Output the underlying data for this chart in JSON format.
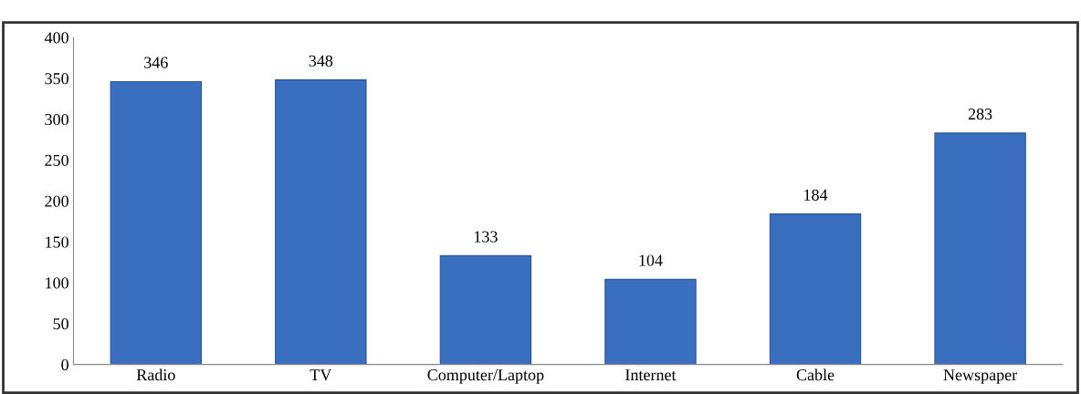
{
  "chart_data": {
    "type": "bar",
    "categories": [
      "Radio",
      "TV",
      "Computer/Laptop",
      "Internet",
      "Cable",
      "Newspaper"
    ],
    "values": [
      346,
      348,
      133,
      104,
      184,
      283
    ],
    "color": "#3a6fc0",
    "ylim": [
      0,
      400
    ],
    "yticks": [
      0,
      50,
      100,
      150,
      200,
      250,
      300,
      350,
      400
    ],
    "data_labels": true,
    "grid": false,
    "legend": false
  }
}
